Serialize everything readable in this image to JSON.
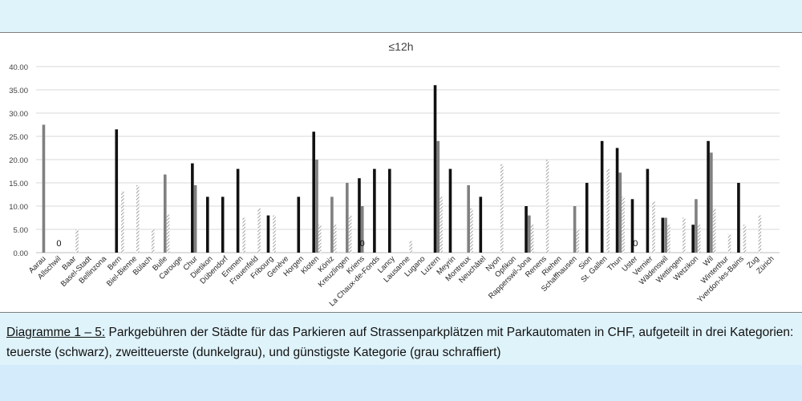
{
  "caption": {
    "label": "Diagramme 1 – 5:",
    "text": " Parkgebühren der Städte für das Parkieren auf Strassenparkplätzen mit Parkautomaten in CHF, aufgeteilt in drei Kategorien: teuerste (schwarz), zweitteuerste (dunkelgrau), und günstigste Kategorie (grau schraffiert)"
  },
  "colors": {
    "black": "#111111",
    "dark_gray": "#808080",
    "hatch_gray": "#9a9a9a",
    "grid": "#d9d9d9"
  },
  "chart_data": {
    "type": "bar",
    "title": "≤12h",
    "xlabel": "",
    "ylabel": "",
    "ylim": [
      0,
      40
    ],
    "yticks": [
      "0.00",
      "5.00",
      "10.00",
      "15.00",
      "20.00",
      "25.00",
      "30.00",
      "35.00",
      "40.00"
    ],
    "grid": true,
    "legend": "none",
    "categories": [
      "Aarau",
      "Allschwil",
      "Baar",
      "Basel-Stadt",
      "Bellinzona",
      "Bern",
      "Biel-Bienne",
      "Bülach",
      "Bulle",
      "Carouge",
      "Chur",
      "Dietikon",
      "Dübendorf",
      "Emmen",
      "Frauenfeld",
      "Fribourg",
      "Genève",
      "Horgen",
      "Kloten",
      "Köniz",
      "Kreuzlingen",
      "Kriens",
      "La Chaux-de-Fonds",
      "Lancy",
      "Lausanne",
      "Lugano",
      "Luzern",
      "Meyrin",
      "Montreux",
      "Neuchâtel",
      "Nyon",
      "Opfikon",
      "Rapperswil-Jona",
      "Renens",
      "Riehen",
      "Schaffhausen",
      "Sion",
      "St. Gallen",
      "Thun",
      "Uster",
      "Vernier",
      "Wädenswil",
      "Wettingen",
      "Wetzikon",
      "Wil",
      "Winterthur",
      "Yverdon-les-Bains",
      "Zug",
      "Zürich"
    ],
    "series": [
      {
        "values": [
          null,
          null,
          null,
          null,
          null,
          26.5,
          null,
          null,
          null,
          null,
          19.2,
          12,
          12,
          18,
          null,
          8,
          null,
          12,
          26,
          null,
          null,
          16,
          18,
          18,
          null,
          null,
          36,
          18,
          null,
          12,
          null,
          null,
          10,
          null,
          null,
          null,
          15,
          24,
          22.5,
          11.5,
          18,
          7.5,
          null,
          6,
          24,
          null,
          15,
          null,
          null
        ]
      },
      {
        "values": [
          27.5,
          null,
          null,
          null,
          null,
          null,
          null,
          null,
          16.8,
          null,
          14.5,
          null,
          null,
          null,
          null,
          null,
          null,
          null,
          20,
          12,
          15,
          10,
          null,
          null,
          null,
          null,
          24,
          null,
          14.5,
          null,
          null,
          null,
          8,
          null,
          null,
          10,
          null,
          null,
          17.2,
          null,
          null,
          7.5,
          null,
          11.5,
          21.5,
          null,
          null,
          null,
          null
        ]
      },
      {
        "values": [
          null,
          null,
          5,
          null,
          null,
          13.2,
          14.5,
          5,
          8.2,
          null,
          null,
          null,
          null,
          7.5,
          9.5,
          8,
          null,
          null,
          6,
          6,
          8,
          null,
          null,
          null,
          2.5,
          null,
          12,
          null,
          9.5,
          null,
          19,
          null,
          6,
          20,
          null,
          5,
          null,
          18,
          12,
          null,
          11,
          6,
          7.5,
          6,
          9.5,
          4,
          6,
          8,
          null
        ]
      }
    ],
    "zero_labels": [
      {
        "category": "Allschwil",
        "text": "0"
      },
      {
        "category": "Kriens",
        "text": "0"
      },
      {
        "category": "Uster",
        "text": "0"
      }
    ]
  }
}
